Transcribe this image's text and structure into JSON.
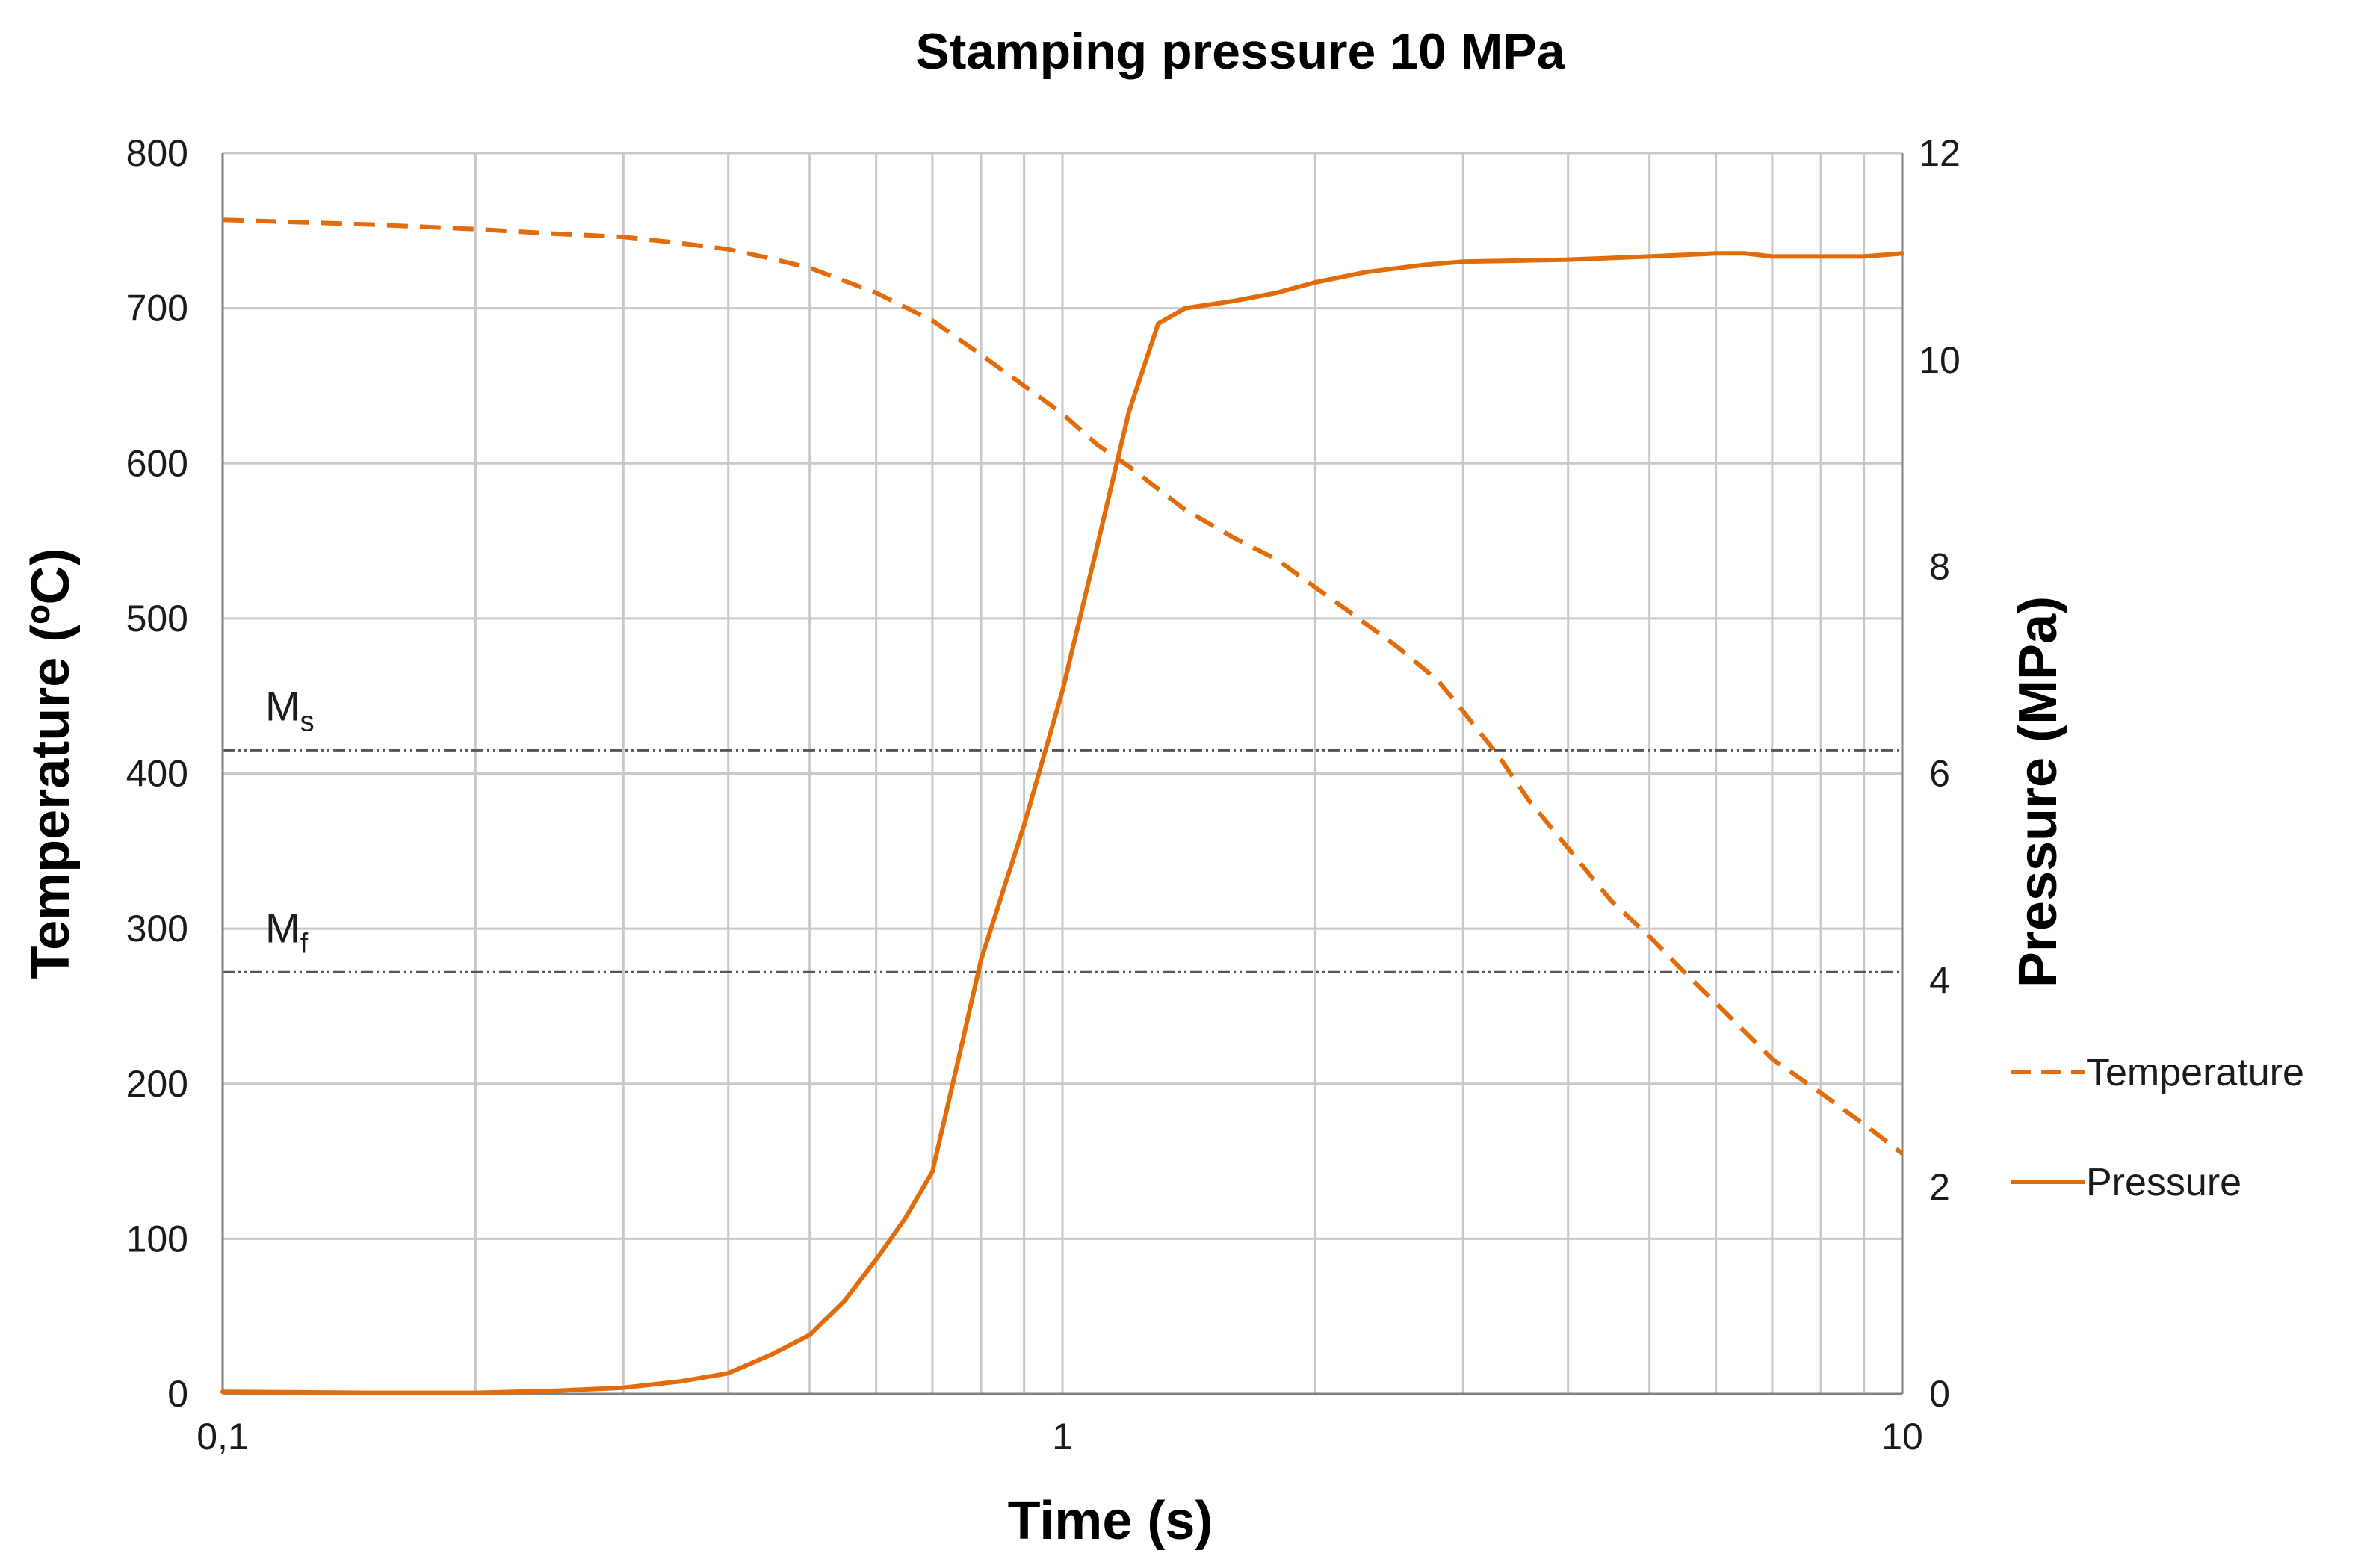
{
  "chart_data": {
    "type": "line",
    "title": "Stamping pressure 10 MPa",
    "xlabel": "Time (s)",
    "ylabel_left": "Temperature (ºC)",
    "ylabel_right": "Pressure (MPa)",
    "x_scale": "log",
    "xlim": [
      0.1,
      10
    ],
    "ylim_left": [
      0,
      800
    ],
    "ylim_right": [
      0,
      12
    ],
    "x_ticks": [
      {
        "value": 0.1,
        "label": "0,1"
      },
      {
        "value": 1,
        "label": "1"
      },
      {
        "value": 10,
        "label": "10"
      }
    ],
    "y_ticks_left": [
      0,
      100,
      200,
      300,
      400,
      500,
      600,
      700,
      800
    ],
    "y_ticks_right": [
      0,
      2,
      4,
      6,
      8,
      10,
      12
    ],
    "grid": true,
    "colors": {
      "series": "#e36c0a",
      "grid": "#c8c8c8",
      "reference": "#555555",
      "axis": "#808080"
    },
    "reference_lines": [
      {
        "name": "Ms",
        "main": "M",
        "sub": "s",
        "value": 415
      },
      {
        "name": "Mf",
        "main": "M",
        "sub": "f",
        "value": 272
      }
    ],
    "series": [
      {
        "name": "Temperature",
        "axis": "left",
        "style": "dashed",
        "x": [
          0.1,
          0.15,
          0.2,
          0.25,
          0.3,
          0.35,
          0.4,
          0.45,
          0.5,
          0.6,
          0.7,
          0.8,
          0.9,
          1.0,
          1.1,
          1.2,
          1.4,
          1.6,
          1.8,
          2.0,
          2.2,
          2.5,
          2.8,
          3.0,
          3.3,
          3.6,
          4.0,
          4.5,
          5.0,
          5.5,
          6.0,
          7.0,
          8.0,
          9.0,
          10.0
        ],
        "values": [
          757,
          754,
          751,
          748,
          746,
          742,
          738,
          732,
          726,
          710,
          692,
          670,
          650,
          632,
          612,
          598,
          570,
          552,
          538,
          520,
          504,
          482,
          460,
          440,
          412,
          382,
          352,
          318,
          295,
          272,
          252,
          216,
          194,
          174,
          155
        ]
      },
      {
        "name": "Pressure",
        "axis": "right",
        "style": "solid",
        "x": [
          0.1,
          0.15,
          0.2,
          0.25,
          0.3,
          0.35,
          0.4,
          0.45,
          0.5,
          0.55,
          0.6,
          0.65,
          0.7,
          0.75,
          0.8,
          0.9,
          1.0,
          1.1,
          1.2,
          1.3,
          1.4,
          1.6,
          1.8,
          2.0,
          2.3,
          2.7,
          3.0,
          4.0,
          5.0,
          6.0,
          6.5,
          7.0,
          8.0,
          9.0,
          10.0
        ],
        "values": [
          0.02,
          0.01,
          0.01,
          0.03,
          0.06,
          0.12,
          0.2,
          0.38,
          0.57,
          0.9,
          1.3,
          1.7,
          2.15,
          3.2,
          4.2,
          5.5,
          6.8,
          8.2,
          9.5,
          10.35,
          10.5,
          10.57,
          10.65,
          10.75,
          10.85,
          10.92,
          10.95,
          10.97,
          11.0,
          11.03,
          11.03,
          11.0,
          11.0,
          11.0,
          11.03
        ]
      }
    ],
    "legend": {
      "position": "right",
      "entries": [
        "Temperature",
        "Pressure"
      ]
    }
  }
}
